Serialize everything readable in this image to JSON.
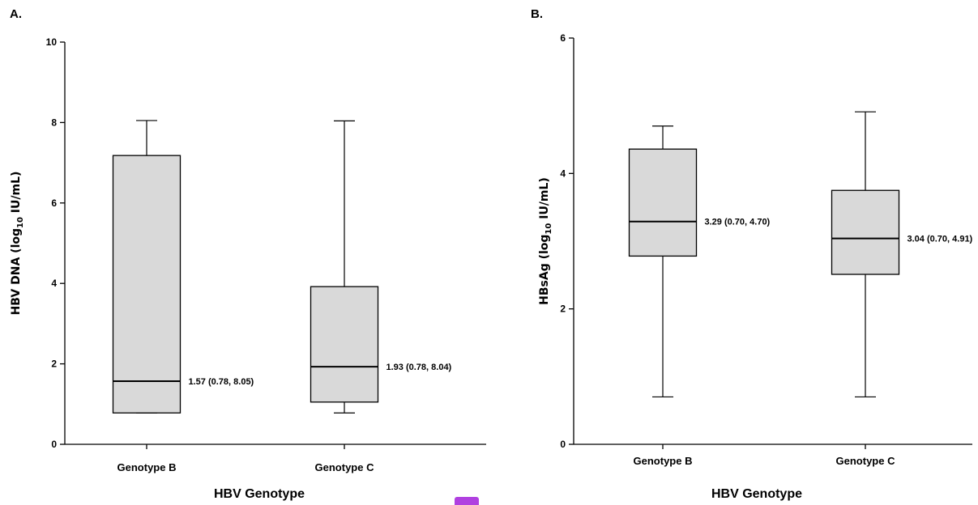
{
  "chart_data": [
    {
      "type": "box",
      "panel_label": "A.",
      "xlabel": "HBV Genotype",
      "ylabel_main": "HBV DNA (log",
      "ylabel_sub": "10",
      "ylabel_end": " IU/mL)",
      "ylim": [
        0,
        10
      ],
      "yticks": [
        0,
        2,
        4,
        6,
        8,
        10
      ],
      "categories": [
        "Genotype B",
        "Genotype C"
      ],
      "boxes": [
        {
          "min": 0.78,
          "q1": 0.78,
          "median": 1.57,
          "q3": 7.18,
          "max": 8.05,
          "label": "1.57 (0.78, 8.05)"
        },
        {
          "min": 0.78,
          "q1": 1.05,
          "median": 1.93,
          "q3": 3.92,
          "max": 8.04,
          "label": "1.93 (0.78, 8.04)"
        }
      ]
    },
    {
      "type": "box",
      "panel_label": "B.",
      "xlabel": "HBV Genotype",
      "ylabel_main": "HBsAg (log",
      "ylabel_sub": "10",
      "ylabel_end": " IU/mL)",
      "ylim": [
        0,
        6
      ],
      "yticks": [
        0,
        2,
        4,
        6
      ],
      "categories": [
        "Genotype B",
        "Genotype C"
      ],
      "boxes": [
        {
          "min": 0.7,
          "q1": 2.78,
          "median": 3.29,
          "q3": 4.36,
          "max": 4.7,
          "label": "3.29 (0.70, 4.70)"
        },
        {
          "min": 0.7,
          "q1": 2.51,
          "median": 3.04,
          "q3": 3.75,
          "max": 4.91,
          "label": "3.04 (0.70, 4.91)"
        }
      ]
    }
  ],
  "colors": {
    "box_fill": "#d9d9d9",
    "line": "#000000",
    "marker": "#b040e0"
  }
}
